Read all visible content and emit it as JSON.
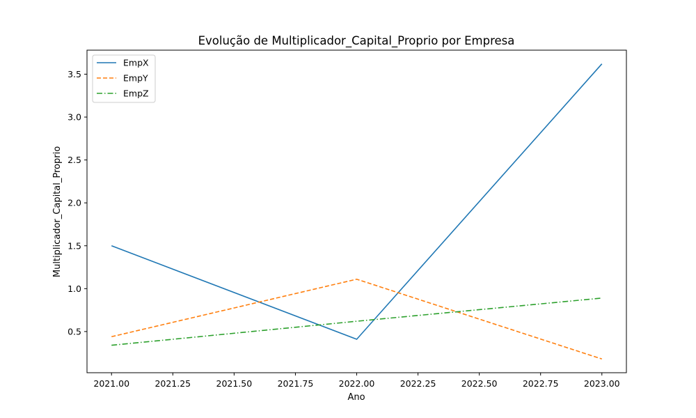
{
  "chart_data": {
    "type": "line",
    "title": "Evolução de Multiplicador_Capital_Proprio por Empresa",
    "xlabel": "Ano",
    "ylabel": "Multiplicador_Capital_Proprio",
    "xlim": [
      2020.9,
      2023.1
    ],
    "ylim": [
      0.02,
      3.78
    ],
    "x_ticks": [
      2021.0,
      2021.25,
      2021.5,
      2021.75,
      2022.0,
      2022.25,
      2022.5,
      2022.75,
      2023.0
    ],
    "x_tick_labels": [
      "2021.00",
      "2021.25",
      "2021.50",
      "2021.75",
      "2022.00",
      "2022.25",
      "2022.50",
      "2022.75",
      "2023.00"
    ],
    "y_ticks": [
      0.5,
      1.0,
      1.5,
      2.0,
      2.5,
      3.0,
      3.5
    ],
    "y_tick_labels": [
      "0.5",
      "1.0",
      "1.5",
      "2.0",
      "2.5",
      "3.0",
      "3.5"
    ],
    "grid": false,
    "legend_position": "top-left",
    "x": [
      2021,
      2022,
      2023
    ],
    "series": [
      {
        "name": "EmpX",
        "values": [
          1.5,
          0.41,
          3.62
        ],
        "color": "#1f77b4",
        "style": "solid"
      },
      {
        "name": "EmpY",
        "values": [
          0.44,
          1.11,
          0.18
        ],
        "color": "#ff7f0e",
        "style": "dashed"
      },
      {
        "name": "EmpZ",
        "values": [
          0.34,
          0.62,
          0.89
        ],
        "color": "#2ca02c",
        "style": "dashdot"
      }
    ]
  }
}
